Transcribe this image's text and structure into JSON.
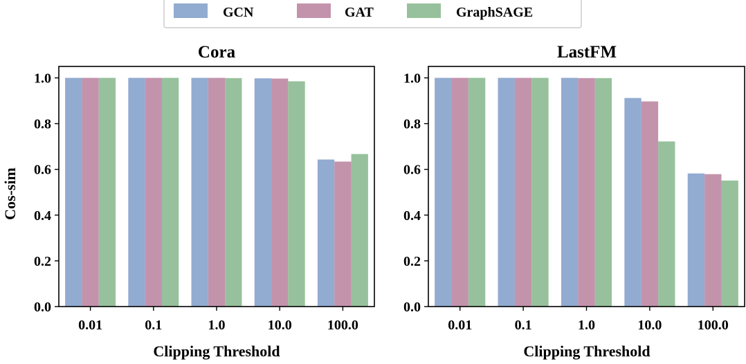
{
  "legend": {
    "items": [
      {
        "name": "GCN",
        "color": "#92abd1"
      },
      {
        "name": "GAT",
        "color": "#c393ac"
      },
      {
        "name": "GraphSAGE",
        "color": "#97c19c"
      }
    ]
  },
  "chart_data": [
    {
      "type": "bar",
      "title": "Cora",
      "xlabel": "Clipping Threshold",
      "ylabel": "Cos-sim",
      "categories": [
        "0.01",
        "0.1",
        "1.0",
        "10.0",
        "100.0"
      ],
      "ylim": [
        0,
        1.05
      ],
      "yticks": [
        "0.0",
        "0.2",
        "0.4",
        "0.6",
        "0.8",
        "1.0"
      ],
      "series": [
        {
          "name": "GCN",
          "values": [
            1.0,
            1.0,
            1.0,
            0.998,
            0.643
          ]
        },
        {
          "name": "GAT",
          "values": [
            1.0,
            1.0,
            1.0,
            0.997,
            0.634
          ]
        },
        {
          "name": "GraphSAGE",
          "values": [
            1.0,
            1.0,
            0.999,
            0.985,
            0.667
          ]
        }
      ]
    },
    {
      "type": "bar",
      "title": "LastFM",
      "xlabel": "Clipping Threshold",
      "ylabel": "",
      "categories": [
        "0.01",
        "0.1",
        "1.0",
        "10.0",
        "100.0"
      ],
      "ylim": [
        0,
        1.05
      ],
      "yticks": [
        "0.0",
        "0.2",
        "0.4",
        "0.6",
        "0.8",
        "1.0"
      ],
      "series": [
        {
          "name": "GCN",
          "values": [
            1.0,
            1.0,
            1.0,
            0.912,
            0.582
          ]
        },
        {
          "name": "GAT",
          "values": [
            1.0,
            1.0,
            0.999,
            0.897,
            0.579
          ]
        },
        {
          "name": "GraphSAGE",
          "values": [
            1.0,
            1.0,
            0.999,
            0.722,
            0.551
          ]
        }
      ]
    }
  ]
}
